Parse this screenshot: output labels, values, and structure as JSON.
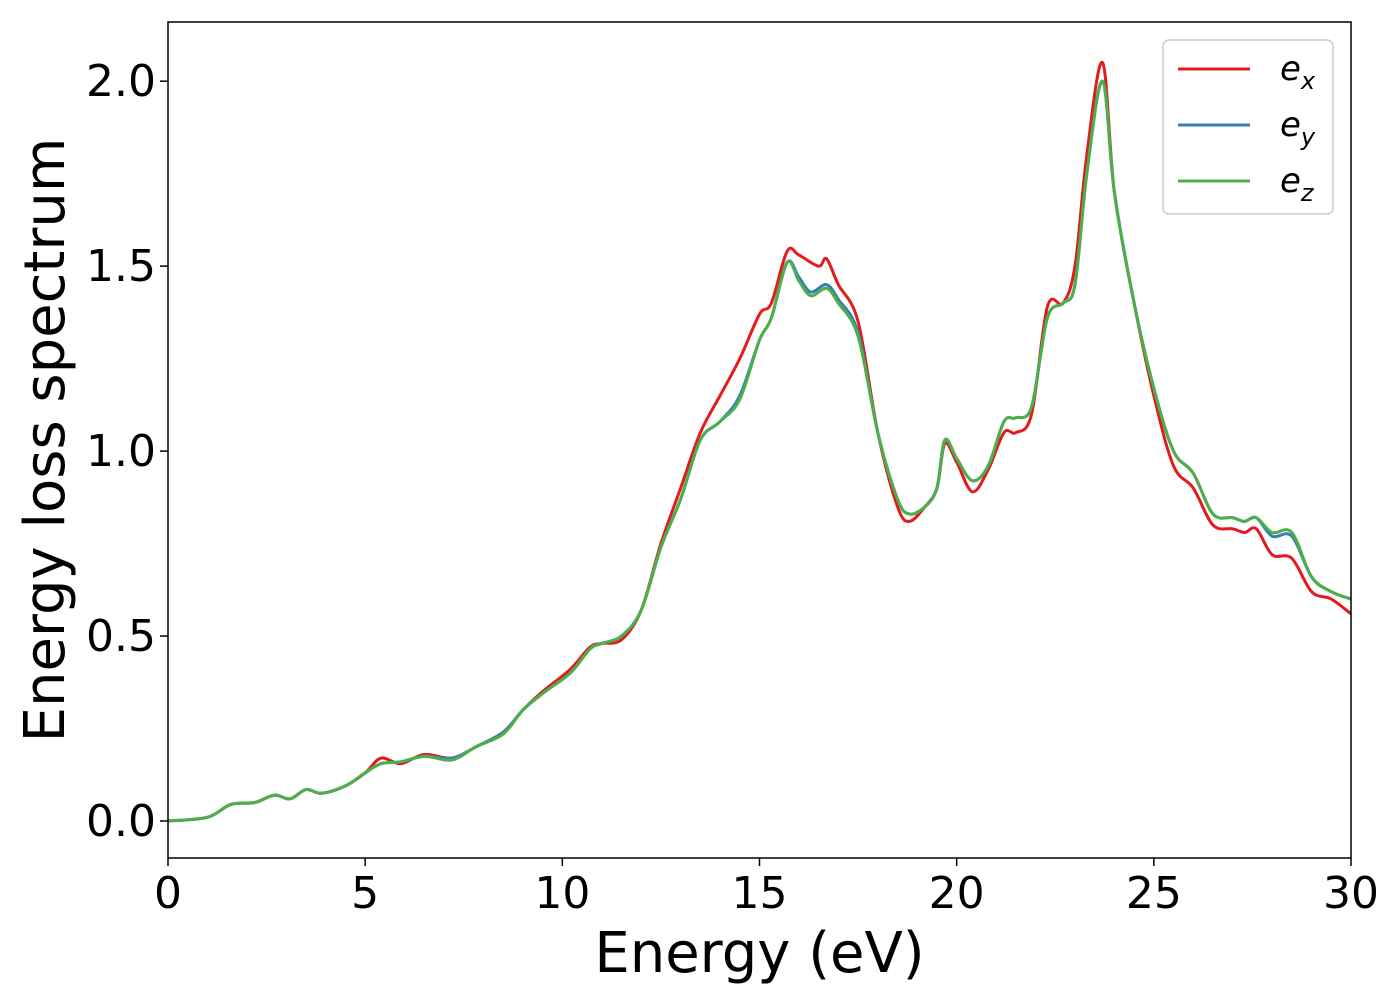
{
  "chart_data": {
    "type": "line",
    "title": "",
    "xlabel": "Energy (eV)",
    "ylabel": "Energy loss spectrum",
    "xlim": [
      0,
      30
    ],
    "ylim": [
      -0.1,
      2.16
    ],
    "xticks": [
      0,
      5,
      10,
      15,
      20,
      25,
      30
    ],
    "xtick_labels": [
      "0",
      "5",
      "10",
      "15",
      "20",
      "25",
      "30"
    ],
    "yticks": [
      0.0,
      0.5,
      1.0,
      1.5,
      2.0
    ],
    "ytick_labels": [
      "0.0",
      "0.5",
      "1.0",
      "1.5",
      "2.0"
    ],
    "grid": false,
    "legend_position": "top-right",
    "series": [
      {
        "name": "e",
        "subscript": "x",
        "color": "#e41a1c",
        "x": [
          0,
          1,
          1.6,
          2.2,
          2.7,
          3.1,
          3.5,
          3.9,
          4.5,
          5.0,
          5.4,
          5.9,
          6.5,
          7.2,
          7.8,
          8.5,
          9.0,
          9.5,
          10.2,
          10.7,
          11.0,
          11.5,
          12.0,
          12.5,
          13.0,
          13.5,
          14.0,
          14.5,
          15.0,
          15.3,
          15.7,
          16.0,
          16.5,
          16.7,
          17.0,
          17.5,
          18.0,
          18.5,
          18.8,
          19.2,
          19.5,
          19.7,
          20.0,
          20.4,
          20.8,
          21.2,
          21.5,
          21.9,
          22.3,
          22.7,
          23.0,
          23.3,
          23.7,
          24.0,
          24.5,
          25.0,
          25.5,
          26.0,
          26.5,
          27.0,
          27.3,
          27.6,
          28.0,
          28.5,
          29.0,
          29.5,
          30.0
        ],
        "values": [
          0.0,
          0.01,
          0.045,
          0.05,
          0.07,
          0.06,
          0.085,
          0.075,
          0.095,
          0.13,
          0.17,
          0.155,
          0.18,
          0.17,
          0.2,
          0.24,
          0.3,
          0.35,
          0.41,
          0.47,
          0.48,
          0.49,
          0.57,
          0.75,
          0.9,
          1.05,
          1.15,
          1.25,
          1.37,
          1.4,
          1.54,
          1.53,
          1.5,
          1.52,
          1.45,
          1.35,
          1.05,
          0.85,
          0.81,
          0.85,
          0.9,
          1.02,
          0.97,
          0.89,
          0.95,
          1.05,
          1.05,
          1.1,
          1.39,
          1.4,
          1.5,
          1.8,
          2.05,
          1.7,
          1.4,
          1.15,
          0.96,
          0.9,
          0.8,
          0.79,
          0.78,
          0.79,
          0.72,
          0.71,
          0.62,
          0.6,
          0.56
        ]
      },
      {
        "name": "e",
        "subscript": "y",
        "color": "#377eb8",
        "x": [
          0,
          1,
          1.6,
          2.2,
          2.7,
          3.1,
          3.5,
          3.9,
          4.5,
          5.0,
          5.4,
          5.9,
          6.5,
          7.2,
          7.8,
          8.5,
          9.0,
          9.5,
          10.2,
          10.7,
          11.0,
          11.5,
          12.0,
          12.5,
          13.0,
          13.5,
          14.0,
          14.5,
          15.0,
          15.3,
          15.7,
          16.0,
          16.3,
          16.7,
          17.0,
          17.5,
          18.0,
          18.5,
          18.8,
          19.2,
          19.5,
          19.7,
          20.0,
          20.4,
          20.8,
          21.2,
          21.5,
          21.9,
          22.3,
          22.7,
          23.0,
          23.3,
          23.7,
          24.0,
          24.5,
          25.0,
          25.5,
          26.0,
          26.5,
          27.0,
          27.3,
          27.6,
          28.0,
          28.5,
          29.0,
          29.5,
          30.0
        ],
        "values": [
          0.0,
          0.01,
          0.045,
          0.05,
          0.07,
          0.06,
          0.085,
          0.075,
          0.095,
          0.13,
          0.155,
          0.16,
          0.175,
          0.17,
          0.2,
          0.24,
          0.3,
          0.345,
          0.4,
          0.465,
          0.48,
          0.5,
          0.57,
          0.74,
          0.87,
          1.03,
          1.08,
          1.15,
          1.3,
          1.36,
          1.51,
          1.47,
          1.43,
          1.45,
          1.41,
          1.32,
          1.05,
          0.87,
          0.83,
          0.85,
          0.9,
          1.03,
          0.98,
          0.92,
          0.96,
          1.08,
          1.09,
          1.12,
          1.36,
          1.4,
          1.45,
          1.75,
          2.0,
          1.7,
          1.4,
          1.17,
          1.0,
          0.94,
          0.83,
          0.82,
          0.81,
          0.82,
          0.77,
          0.77,
          0.66,
          0.62,
          0.6
        ]
      },
      {
        "name": "e",
        "subscript": "z",
        "color": "#4daf4a",
        "x": [
          0,
          1,
          1.6,
          2.2,
          2.7,
          3.1,
          3.5,
          3.9,
          4.5,
          5.0,
          5.4,
          5.9,
          6.5,
          7.2,
          7.8,
          8.5,
          9.0,
          9.5,
          10.2,
          10.7,
          11.0,
          11.5,
          12.0,
          12.5,
          13.0,
          13.5,
          14.0,
          14.5,
          15.0,
          15.3,
          15.7,
          16.0,
          16.3,
          16.7,
          17.0,
          17.5,
          18.0,
          18.5,
          18.8,
          19.2,
          19.5,
          19.7,
          20.0,
          20.4,
          20.8,
          21.2,
          21.5,
          21.9,
          22.3,
          22.7,
          23.0,
          23.3,
          23.7,
          24.0,
          24.5,
          25.0,
          25.5,
          26.0,
          26.5,
          27.0,
          27.3,
          27.6,
          28.0,
          28.5,
          29.0,
          29.5,
          30.0
        ],
        "values": [
          0.0,
          0.01,
          0.045,
          0.05,
          0.07,
          0.06,
          0.085,
          0.075,
          0.095,
          0.13,
          0.155,
          0.16,
          0.175,
          0.165,
          0.2,
          0.235,
          0.3,
          0.345,
          0.4,
          0.465,
          0.48,
          0.5,
          0.57,
          0.74,
          0.87,
          1.03,
          1.08,
          1.14,
          1.3,
          1.36,
          1.51,
          1.46,
          1.42,
          1.44,
          1.4,
          1.31,
          1.05,
          0.87,
          0.83,
          0.85,
          0.9,
          1.03,
          0.98,
          0.92,
          0.96,
          1.08,
          1.09,
          1.12,
          1.36,
          1.4,
          1.45,
          1.75,
          2.0,
          1.7,
          1.4,
          1.17,
          1.0,
          0.94,
          0.83,
          0.82,
          0.81,
          0.82,
          0.78,
          0.78,
          0.66,
          0.62,
          0.6
        ]
      }
    ]
  }
}
